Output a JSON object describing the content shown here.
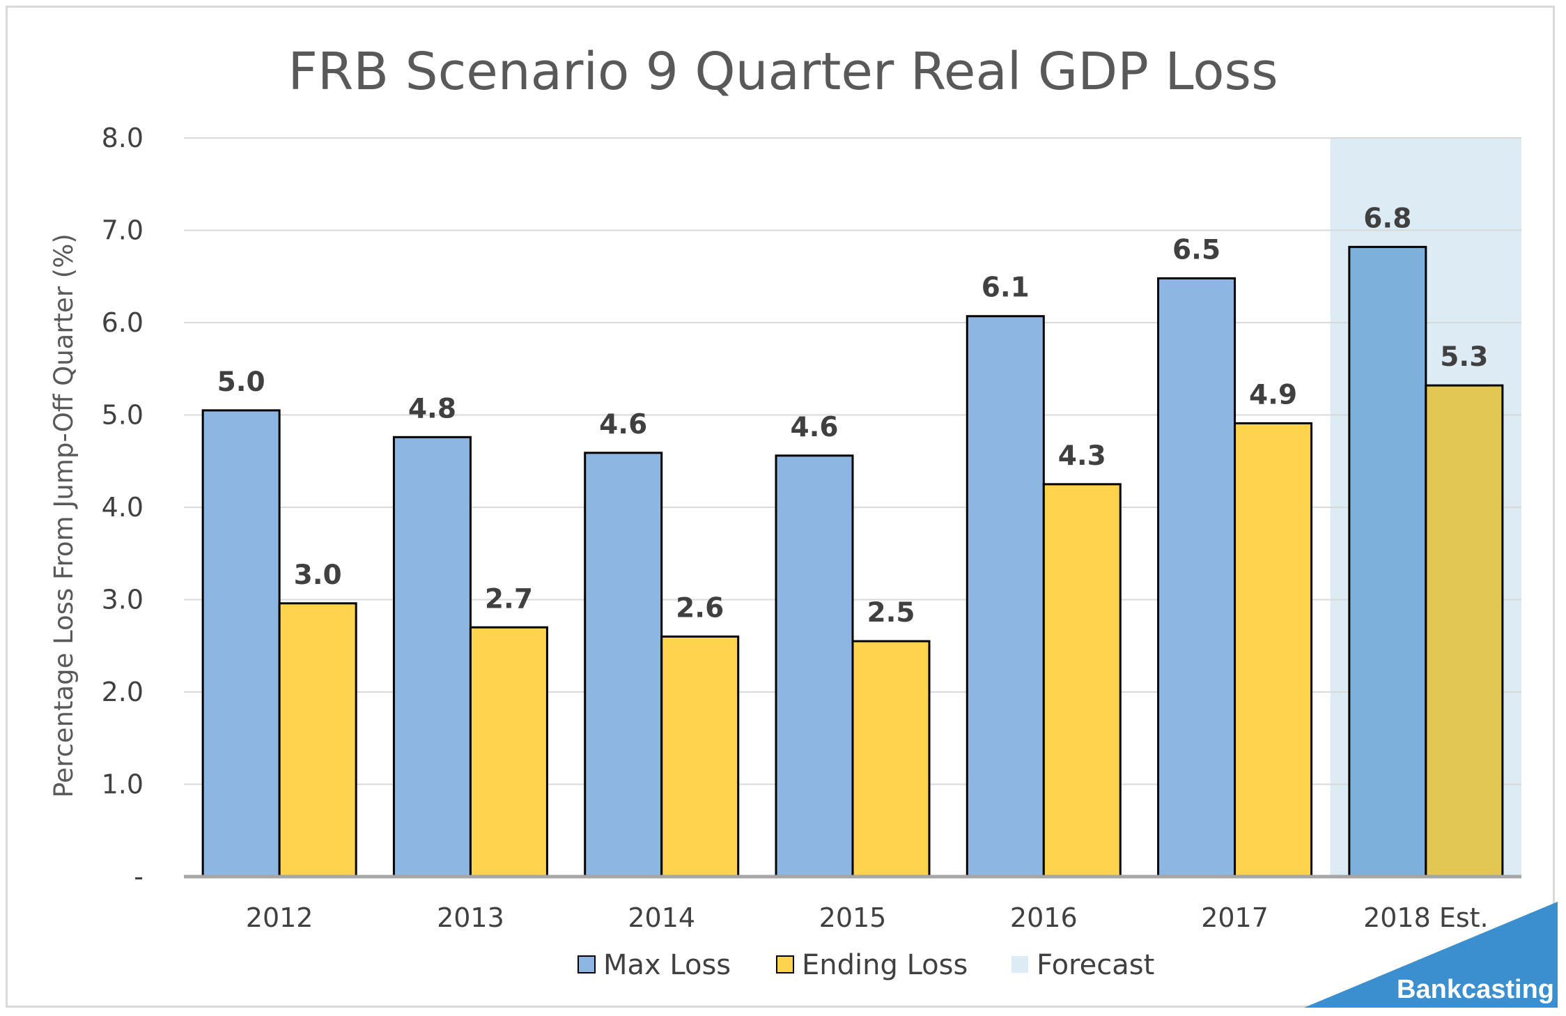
{
  "chart_data": {
    "type": "bar",
    "title": "FRB Scenario 9 Quarter Real GDP Loss",
    "ylabel": "Percentage Loss From Jump-Off Quarter (%)",
    "xlabel": "",
    "ylim": [
      0,
      8
    ],
    "yticks": [
      {
        "value": 0,
        "label": "-"
      },
      {
        "value": 1,
        "label": "1.0"
      },
      {
        "value": 2,
        "label": "2.0"
      },
      {
        "value": 3,
        "label": "3.0"
      },
      {
        "value": 4,
        "label": "4.0"
      },
      {
        "value": 5,
        "label": "5.0"
      },
      {
        "value": 6,
        "label": "6.0"
      },
      {
        "value": 7,
        "label": "7.0"
      },
      {
        "value": 8,
        "label": "8.0"
      }
    ],
    "categories": [
      "2012",
      "2013",
      "2014",
      "2015",
      "2016",
      "2017",
      "2018 Est."
    ],
    "series": [
      {
        "name": "Max Loss",
        "color": "#8db7e2",
        "values": [
          5.05,
          4.76,
          4.59,
          4.56,
          6.07,
          6.48,
          6.82
        ],
        "labels": [
          "5.0",
          "4.8",
          "4.6",
          "4.6",
          "6.1",
          "6.5",
          "6.8"
        ]
      },
      {
        "name": "Ending Loss",
        "color": "#ffd34d",
        "values": [
          2.96,
          2.7,
          2.6,
          2.55,
          4.25,
          4.91,
          5.32
        ],
        "labels": [
          "3.0",
          "2.7",
          "2.6",
          "2.5",
          "4.3",
          "4.9",
          "5.3"
        ]
      }
    ],
    "forecast": {
      "name": "Forecast",
      "category": "2018 Est.",
      "color": "#ddebf5"
    },
    "grid": true,
    "legend": "bottom"
  },
  "brand": {
    "text": "Bankcasting",
    "color": "#3b8fcf"
  }
}
